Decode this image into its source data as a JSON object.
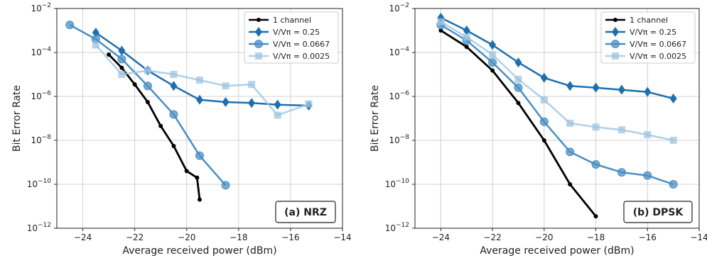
{
  "chart_data": [
    {
      "type": "line",
      "panel_tag": "(a) NRZ",
      "xlabel": "Average received power (dBm)",
      "ylabel": "Bit Error Rate",
      "xlim": [
        -25,
        -14
      ],
      "ylim_exponent": [
        -12,
        -2
      ],
      "y_scale": "log",
      "x_ticks": [
        "−24",
        "−22",
        "−20",
        "−18",
        "−16",
        "−14"
      ],
      "x_tick_values": [
        -24,
        -22,
        -20,
        -18,
        -16,
        -14
      ],
      "grid": true,
      "legend_position": "top-right",
      "series": [
        {
          "name": "1 channel",
          "color": "#000000",
          "marker": "dot",
          "x": [
            -23.0,
            -22.5,
            -22.0,
            -21.5,
            -21.0,
            -20.5,
            -20.0,
            -19.6,
            -19.5
          ],
          "y": [
            8e-05,
            2e-05,
            3.5e-06,
            5.5e-07,
            4.5e-08,
            5.5e-09,
            4e-10,
            2e-10,
            2e-11
          ]
        },
        {
          "name": "V/Vπ = 0.25",
          "color": "#1f6fae",
          "marker": "diamond",
          "x": [
            -23.5,
            -22.5,
            -21.5,
            -20.5,
            -19.5,
            -18.5,
            -17.5,
            -16.5,
            -15.3
          ],
          "y": [
            0.0008,
            0.00012,
            1.5e-05,
            3e-06,
            7e-07,
            5.5e-07,
            5e-07,
            4.2e-07,
            3.8e-07
          ]
        },
        {
          "name": "V/Vπ = 0.0667",
          "color": "#4a8fc4",
          "marker": "circle",
          "x": [
            -24.5,
            -23.5,
            -22.5,
            -21.5,
            -20.5,
            -19.5,
            -18.5
          ],
          "y": [
            0.0018,
            0.0004,
            5e-05,
            3e-06,
            1.5e-07,
            2e-09,
            9e-11
          ]
        },
        {
          "name": "V/Vπ = 0.0025",
          "color": "#9ec4e2",
          "marker": "square",
          "x": [
            -23.5,
            -22.5,
            -21.5,
            -20.5,
            -19.5,
            -18.5,
            -17.5,
            -16.5,
            -15.3
          ],
          "y": [
            0.00022,
            1e-05,
            1.5e-05,
            1e-05,
            5.5e-06,
            3e-06,
            3.5e-06,
            1.4e-07,
            4.5e-07
          ]
        }
      ]
    },
    {
      "type": "line",
      "panel_tag": "(b) DPSK",
      "xlabel": "Average received power (dBm)",
      "ylabel": "Bit Error Rate",
      "xlim": [
        -25,
        -14
      ],
      "ylim_exponent": [
        -12,
        -2
      ],
      "y_scale": "log",
      "x_ticks": [
        "−24",
        "−22",
        "−20",
        "−18",
        "−16",
        "−14"
      ],
      "x_tick_values": [
        -24,
        -22,
        -20,
        -18,
        -16,
        -14
      ],
      "grid": true,
      "legend_position": "top-right",
      "series": [
        {
          "name": "1 channel",
          "color": "#000000",
          "marker": "dot",
          "x": [
            -24,
            -23,
            -22,
            -21,
            -20,
            -19,
            -18
          ],
          "y": [
            0.001,
            0.00018,
            1.5e-05,
            5e-07,
            1e-08,
            1e-10,
            3.5e-12
          ]
        },
        {
          "name": "V/Vπ = 0.25",
          "color": "#1f6fae",
          "marker": "diamond",
          "x": [
            -24,
            -23,
            -22,
            -21,
            -20,
            -19,
            -18,
            -17,
            -16,
            -15
          ],
          "y": [
            0.0038,
            0.001,
            0.00022,
            3.5e-05,
            7e-06,
            3e-06,
            2.5e-06,
            2e-06,
            1.6e-06,
            8e-07
          ]
        },
        {
          "name": "V/Vπ = 0.0667",
          "color": "#4a8fc4",
          "marker": "circle",
          "x": [
            -24,
            -23,
            -22,
            -21,
            -20,
            -19,
            -18,
            -17,
            -16,
            -15
          ],
          "y": [
            0.0018,
            0.00035,
            3.5e-05,
            2.5e-06,
            7e-08,
            3e-09,
            8e-10,
            3.5e-10,
            2.5e-10,
            1e-10
          ]
        },
        {
          "name": "V/Vπ = 0.0025",
          "color": "#9ec4e2",
          "marker": "square",
          "x": [
            -24,
            -23,
            -22,
            -21,
            -20,
            -19,
            -18,
            -17,
            -16,
            -15
          ],
          "y": [
            0.0025,
            0.0005,
            8e-05,
            6e-06,
            7e-07,
            6e-08,
            4e-08,
            3e-08,
            1.8e-08,
            1e-08
          ]
        }
      ]
    }
  ]
}
